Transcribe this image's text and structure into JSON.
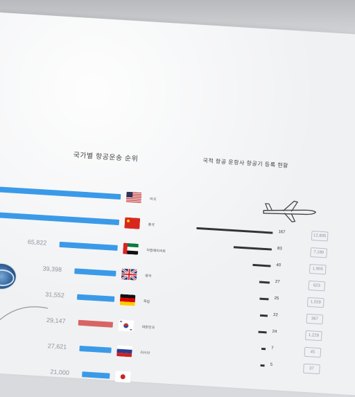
{
  "left_panel": {
    "title": "국가별 항공운송 순위",
    "rows": [
      {
        "value": "",
        "bar_color": "#3a9ae8",
        "bar_pct": 1.0,
        "flag": "usa-flag-icon",
        "name": "미국"
      },
      {
        "value": "",
        "bar_color": "#3a9ae8",
        "bar_pct": 0.95,
        "flag": "china-flag-icon",
        "name": "중국"
      },
      {
        "value": "65,822",
        "bar_color": "#3a9ae8",
        "bar_pct": 0.42,
        "flag": "uae-flag-icon",
        "name": "아랍에미리트"
      },
      {
        "value": "39,398",
        "bar_color": "#3a9ae8",
        "bar_pct": 0.3,
        "flag": "uk-flag-icon",
        "name": "영국"
      },
      {
        "value": "31,552",
        "bar_color": "#3a9ae8",
        "bar_pct": 0.27,
        "flag": "germany-flag-icon",
        "name": "독일"
      },
      {
        "value": "29,147",
        "bar_color": "#d96464",
        "bar_pct": 0.25,
        "flag": "korea-flag-icon",
        "name": "대한민국"
      },
      {
        "value": "27,621",
        "bar_color": "#3a9ae8",
        "bar_pct": 0.23,
        "flag": "russia-flag-icon",
        "name": "러시아"
      },
      {
        "value": "21,000",
        "bar_color": "#3a9ae8",
        "bar_pct": 0.2,
        "flag": "japan-flag-icon",
        "name": ""
      }
    ]
  },
  "right_panel": {
    "title": "국적 항공 운항사 항공기 등록 현황",
    "rows": [
      {
        "value": "167",
        "bar_pct": 1.0,
        "cell": "12,805"
      },
      {
        "value": "83",
        "bar_pct": 0.5,
        "cell": "7,180"
      },
      {
        "value": "40",
        "bar_pct": 0.24,
        "cell": "1,905"
      },
      {
        "value": "27",
        "bar_pct": 0.14,
        "cell": "623"
      },
      {
        "value": "25",
        "bar_pct": 0.12,
        "cell": "1,029"
      },
      {
        "value": "22",
        "bar_pct": 0.1,
        "cell": "367"
      },
      {
        "value": "24",
        "bar_pct": 0.11,
        "cell": "1,229"
      },
      {
        "value": "7",
        "bar_pct": 0.04,
        "cell": "45"
      },
      {
        "value": "5",
        "bar_pct": 0.03,
        "cell": "37"
      }
    ]
  },
  "colors": {
    "blue": "#3a9ae8",
    "red": "#d96464",
    "dark": "#333333"
  }
}
